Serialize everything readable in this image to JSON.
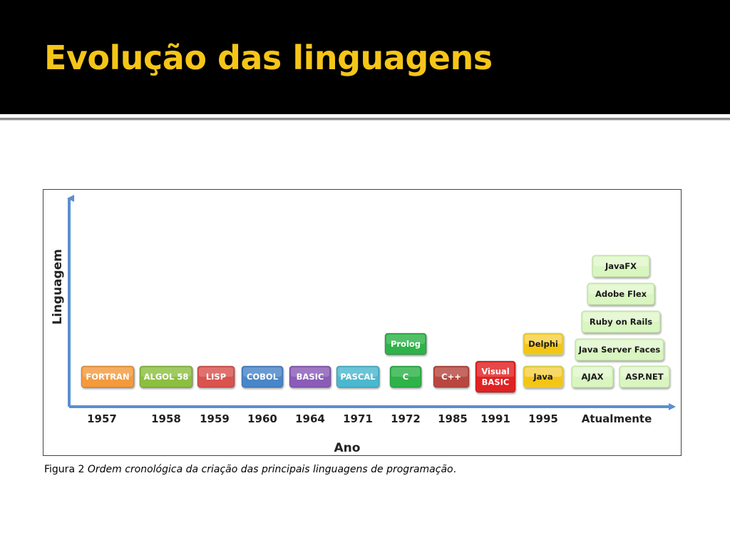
{
  "slide": {
    "title": "Evolução das linguagens"
  },
  "figure": {
    "caption_prefix": "Figura 2 ",
    "caption_italic": "Ordem cronológica da criação das principais linguagens de programação",
    "caption_suffix": ".",
    "y_axis_label": "Linguagem",
    "x_axis_label": "Ano",
    "years": [
      "1957",
      "1958",
      "1959",
      "1960",
      "1964",
      "1971",
      "1972",
      "1985",
      "1991",
      "1995",
      "Atualmente"
    ],
    "colors": {
      "orange": "#f39a3c",
      "green_olive": "#8cbf3f",
      "red_soft": "#d9534f",
      "blue": "#4a86c8",
      "purple": "#8a5cb8",
      "teal": "#4bb8cf",
      "green": "#2db34a",
      "maroon": "#b8463f",
      "red": "#e02020",
      "yellow": "#f5c518",
      "pale_green": "#d9f5c0",
      "axis": "#5b8fd0"
    },
    "languages": [
      {
        "name": "FORTRAN",
        "year": "1957",
        "color": "orange"
      },
      {
        "name": "ALGOL 58",
        "year": "1958",
        "color": "green_olive"
      },
      {
        "name": "LISP",
        "year": "1959",
        "color": "red_soft"
      },
      {
        "name": "COBOL",
        "year": "1960",
        "color": "blue"
      },
      {
        "name": "BASIC",
        "year": "1964",
        "color": "purple"
      },
      {
        "name": "PASCAL",
        "year": "1971",
        "color": "teal"
      },
      {
        "name": "C",
        "year": "1972",
        "color": "green"
      },
      {
        "name": "Prolog",
        "year": "1972",
        "color": "green"
      },
      {
        "name": "C++",
        "year": "1985",
        "color": "maroon"
      },
      {
        "name": "Visual BASIC",
        "year": "1991",
        "color": "red"
      },
      {
        "name": "Java",
        "year": "1995",
        "color": "yellow"
      },
      {
        "name": "Delphi",
        "year": "1995",
        "color": "yellow"
      },
      {
        "name": "AJAX",
        "year": "Atualmente",
        "color": "pale_green"
      },
      {
        "name": "ASP.NET",
        "year": "Atualmente",
        "color": "pale_green"
      },
      {
        "name": "Java Server Faces",
        "year": "Atualmente",
        "color": "pale_green"
      },
      {
        "name": "Ruby on Rails",
        "year": "Atualmente",
        "color": "pale_green"
      },
      {
        "name": "Adobe Flex",
        "year": "Atualmente",
        "color": "pale_green"
      },
      {
        "name": "JavaFX",
        "year": "Atualmente",
        "color": "pale_green"
      }
    ]
  }
}
